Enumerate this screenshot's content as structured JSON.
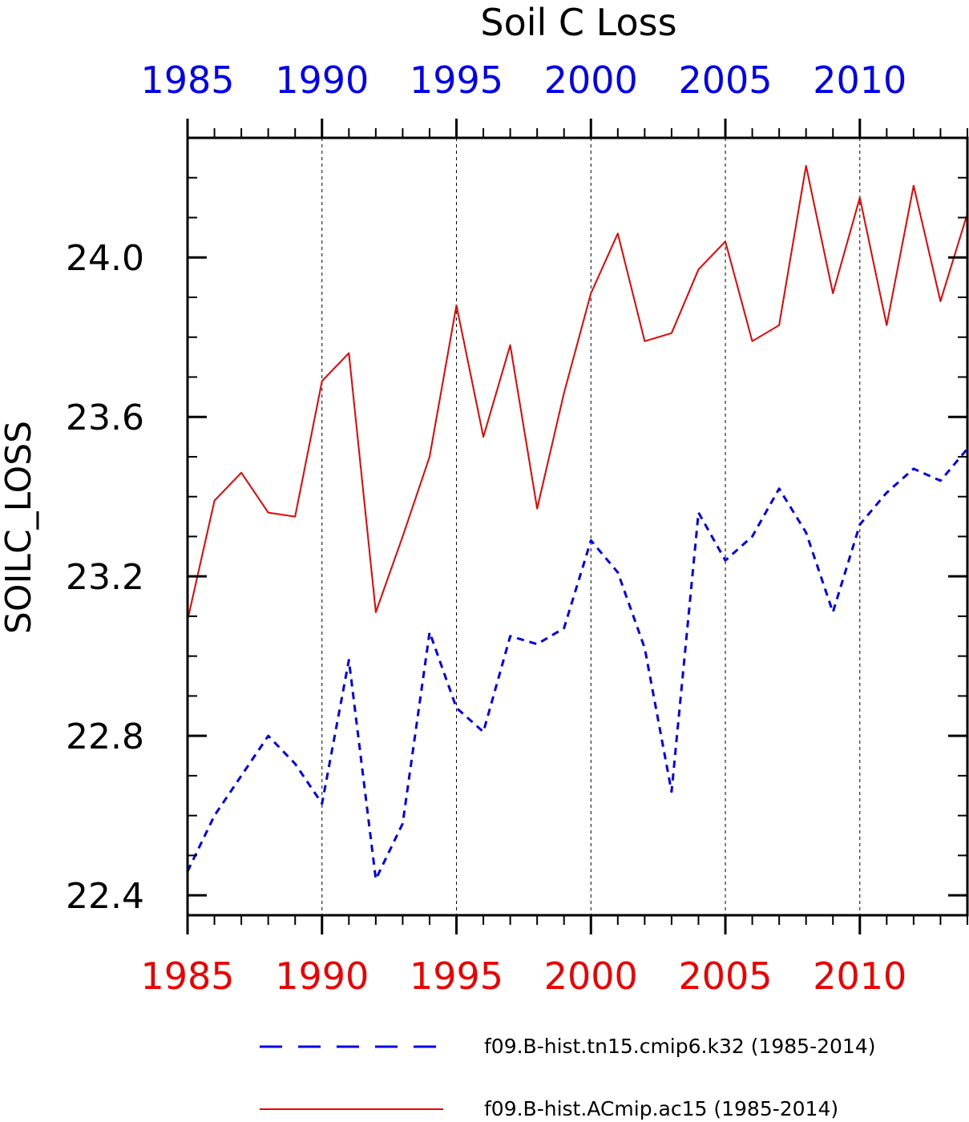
{
  "chart_data": {
    "type": "line",
    "title": "Soil C Loss",
    "ylabel": "SOILC_LOSS",
    "xlim": [
      1985,
      2014
    ],
    "ylim": [
      22.35,
      24.3
    ],
    "xticks": [
      "1985",
      "1990",
      "1995",
      "2000",
      "2005",
      "2010"
    ],
    "yticks": [
      "22.4",
      "22.8",
      "23.2",
      "23.6",
      "24.0"
    ],
    "grid": "vertical dashed at major x ticks",
    "legend_position": "bottom",
    "x": [
      1985,
      1986,
      1987,
      1988,
      1989,
      1990,
      1991,
      1992,
      1993,
      1994,
      1995,
      1996,
      1997,
      1998,
      1999,
      2000,
      2001,
      2002,
      2003,
      2004,
      2005,
      2006,
      2007,
      2008,
      2009,
      2010,
      2011,
      2012,
      2013,
      2014
    ],
    "series": [
      {
        "name": "f09.B-hist.tn15.cmip6.k32 (1985-2014)",
        "color": "#0000ee",
        "dash": "dashed",
        "values": [
          22.46,
          22.6,
          22.7,
          22.8,
          22.73,
          22.63,
          22.99,
          22.44,
          22.58,
          23.06,
          22.87,
          22.81,
          23.05,
          23.03,
          23.07,
          23.29,
          23.21,
          23.02,
          22.66,
          23.36,
          23.24,
          23.3,
          23.42,
          23.31,
          23.11,
          23.33,
          23.41,
          23.47,
          23.44,
          23.52
        ]
      },
      {
        "name": "f09.B-hist.ACmip.ac15 (1985-2014)",
        "color": "#ee0000",
        "dash": "solid",
        "values": [
          23.09,
          23.39,
          23.46,
          23.36,
          23.35,
          23.69,
          23.76,
          23.11,
          23.3,
          23.5,
          23.88,
          23.55,
          23.78,
          23.37,
          23.66,
          23.91,
          24.06,
          23.79,
          23.81,
          23.97,
          24.04,
          23.79,
          23.83,
          24.23,
          23.91,
          24.15,
          23.83,
          24.18,
          23.89,
          24.11
        ]
      }
    ]
  }
}
